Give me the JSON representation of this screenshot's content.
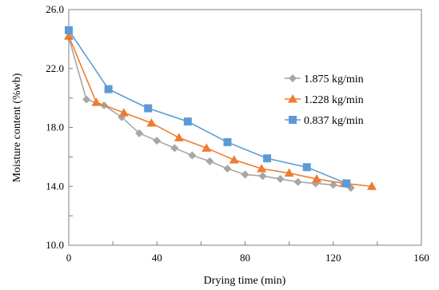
{
  "chart_data": {
    "type": "line",
    "title": "",
    "xlabel": "Drying time (min)",
    "ylabel": "Moisture content (%wb)",
    "xlim": [
      0,
      160
    ],
    "ylim": [
      10.0,
      26.0
    ],
    "xticks": [
      0,
      40,
      80,
      120,
      160
    ],
    "yticks": [
      10.0,
      14.0,
      18.0,
      22.0,
      26.0
    ],
    "xtick_labels": [
      "0",
      "40",
      "80",
      "120",
      "160"
    ],
    "ytick_labels": [
      "10.0",
      "14.0",
      "18.0",
      "22.0",
      "26.0"
    ],
    "grid": false,
    "legend_position": "right",
    "series": [
      {
        "name": "1.875 kg/min",
        "color": "#a6a6a6",
        "marker": "diamond",
        "x": [
          0,
          8,
          16,
          24,
          32,
          40,
          48,
          56,
          64,
          72,
          80,
          88,
          96,
          104,
          112,
          120,
          128
        ],
        "y": [
          24.1,
          19.9,
          19.5,
          18.7,
          17.6,
          17.1,
          16.6,
          16.1,
          15.7,
          15.2,
          14.8,
          14.7,
          14.5,
          14.3,
          14.2,
          14.1,
          13.9
        ]
      },
      {
        "name": "1.228 kg/min",
        "color": "#ed7d31",
        "marker": "triangle",
        "x": [
          0,
          12.5,
          25,
          37.5,
          50,
          62.5,
          75,
          87.5,
          100,
          112.5,
          125,
          137.5
        ],
        "y": [
          24.2,
          19.7,
          19.0,
          18.3,
          17.3,
          16.6,
          15.8,
          15.2,
          14.9,
          14.5,
          14.2,
          14.0
        ]
      },
      {
        "name": "0.837 kg/min",
        "color": "#5b9bd5",
        "marker": "square",
        "x": [
          0,
          18,
          36,
          54,
          72,
          90,
          108,
          126
        ],
        "y": [
          24.6,
          20.6,
          19.3,
          18.4,
          17.0,
          15.9,
          15.3,
          14.2
        ]
      }
    ]
  }
}
